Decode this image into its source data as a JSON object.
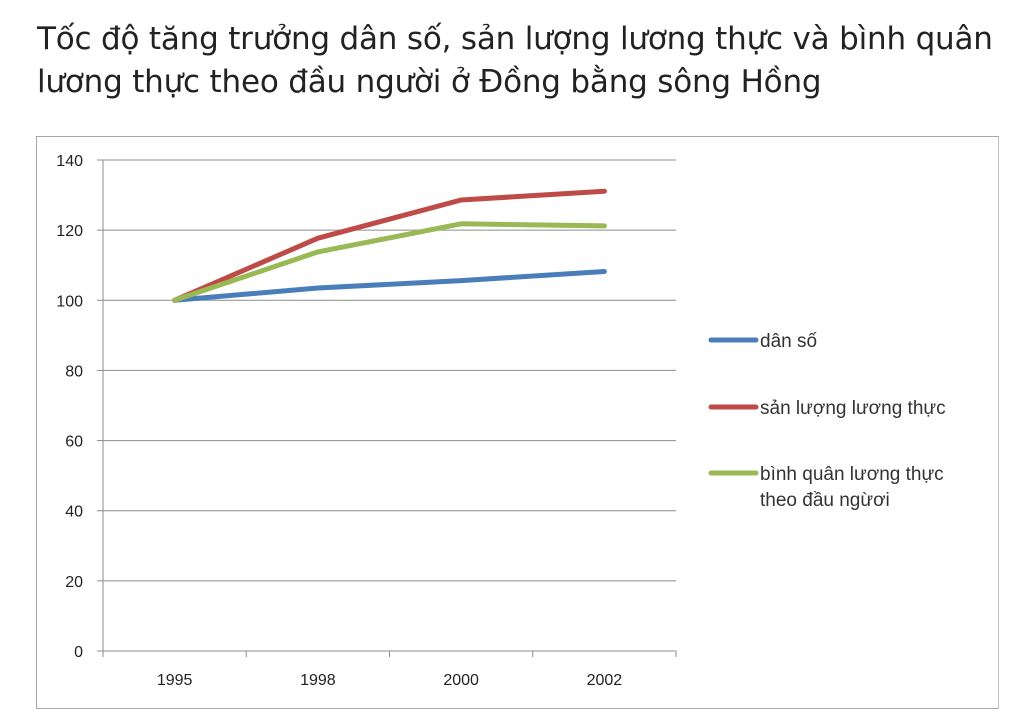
{
  "title": {
    "line1": "Tốc độ tăng trưởng dân số, sản lượng lương thực và bình quân",
    "line2": "lương thực theo đầu người ở Đồng bằng sông Hồng"
  },
  "chart_data": {
    "type": "line",
    "title": "Tốc độ tăng trưởng dân số, sản lượng lương thực và bình quân lương thực theo đầu người ở Đồng bằng sông Hồng",
    "xlabel": "",
    "ylabel": "",
    "categories": [
      "1995",
      "1998",
      "2000",
      "2002"
    ],
    "ylim": [
      0,
      140
    ],
    "yticks": [
      0,
      20,
      40,
      60,
      80,
      100,
      120,
      140
    ],
    "grid": true,
    "legend_position": "right",
    "series": [
      {
        "name": "dân số",
        "values": [
          100,
          103.5,
          105.6,
          108.2
        ],
        "color": "#4a7ebb"
      },
      {
        "name": "sản lượng lương thực",
        "values": [
          100,
          117.7,
          128.6,
          131.1
        ],
        "color": "#be4b48"
      },
      {
        "name": "bình quân lương thực theo đầu người",
        "legend_lines": [
          "bình quân lương thực",
          "theo đầu ngừơi"
        ],
        "values": [
          100,
          113.8,
          121.8,
          121.2
        ],
        "color": "#98b954"
      }
    ]
  }
}
